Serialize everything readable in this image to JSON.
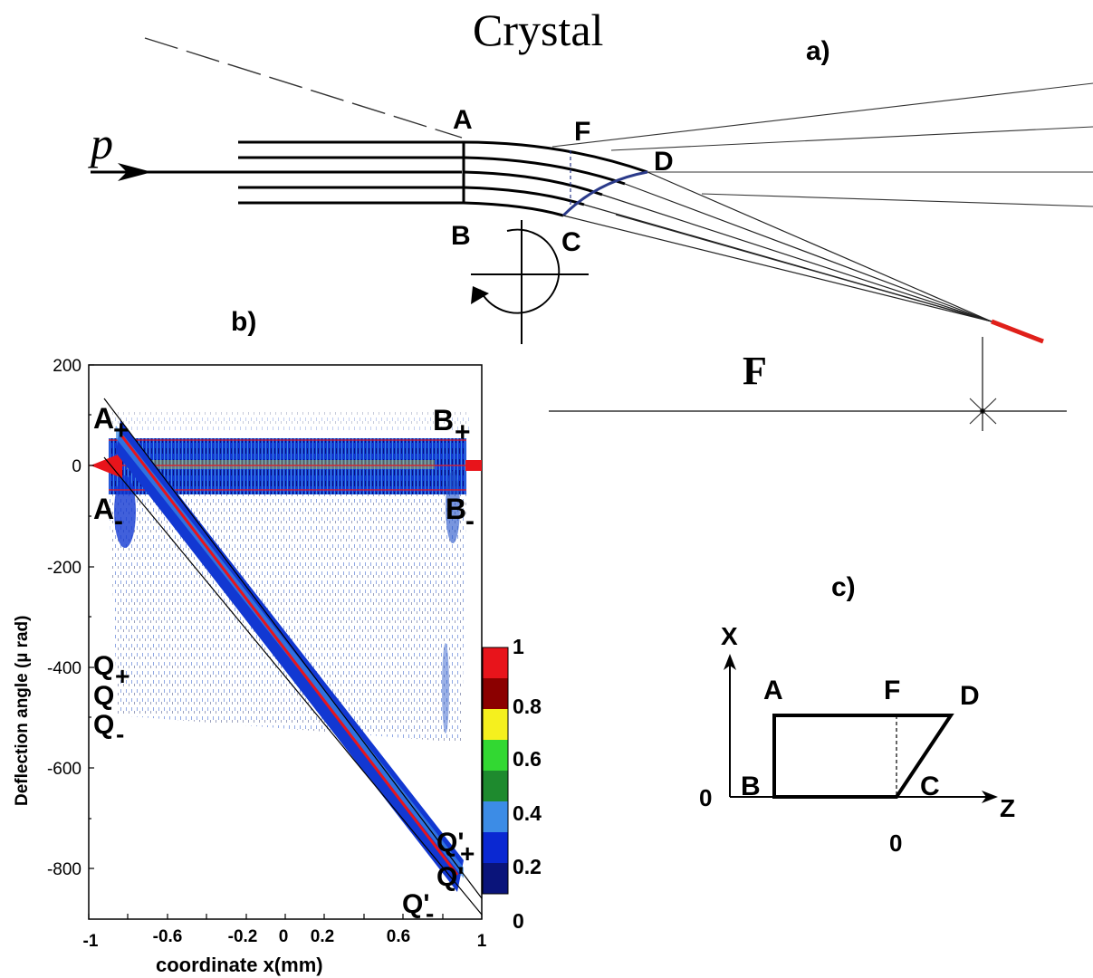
{
  "panel_a": {
    "tag": "a)",
    "crystal_title": "Crystal",
    "beam_label": "p",
    "corners": [
      "A",
      "B",
      "C",
      "D",
      "F"
    ],
    "focus_label": "F"
  },
  "panel_b": {
    "tag": "b)",
    "ylabel": "Deflection angle (µ rad)",
    "xlabel": "coordinate x(mm)",
    "y_ticks": [
      "200",
      "0",
      "-200",
      "-400",
      "-600",
      "-800"
    ],
    "x_ticks": [
      "-1",
      "-0.6",
      "-0.2",
      "0",
      "0.2",
      "0.6",
      "1"
    ],
    "markers": {
      "a_plus": "A",
      "a_minus": "A",
      "b_plus": "B",
      "b_minus": "B",
      "q_plus": "Q",
      "q_mid": "Q",
      "q_minus": "Q",
      "qp_plus": "Q'",
      "qp_mid": "Q'",
      "qp_minus": "Q'",
      "plus_sign": "+",
      "minus_sign": "-"
    },
    "colorbar": {
      "labels": [
        "1",
        "0.8",
        "0.6",
        "0.4",
        "0.2",
        "0"
      ],
      "colors": [
        "#e8141b",
        "#8b0000",
        "#f5f01e",
        "#32d832",
        "#1e8a2e",
        "#3c8ce6",
        "#0a28d2",
        "#0a147a"
      ]
    },
    "chart_data": {
      "type": "heatmap",
      "xlim": [
        -1,
        1
      ],
      "ylim": [
        -900,
        200
      ],
      "bands": [
        {
          "id": "A+B+",
          "y": 50
        },
        {
          "id": "center",
          "y": 0
        },
        {
          "id": "A-B-",
          "y": -50
        }
      ],
      "volume_capture_line": {
        "x": [
          -0.85,
          0.85
        ],
        "y": [
          -480,
          -800
        ]
      }
    }
  },
  "panel_c": {
    "tag": "c)",
    "axis_x": "X",
    "axis_z": "Z",
    "origin_x": "0",
    "origin_z": "0",
    "corners": [
      "A",
      "F",
      "D",
      "B",
      "C"
    ]
  }
}
